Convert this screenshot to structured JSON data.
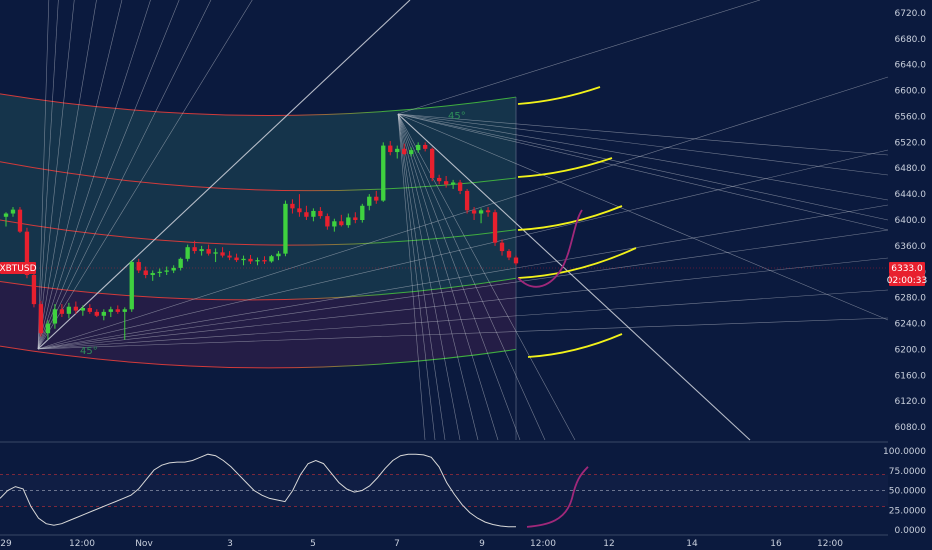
{
  "chart_data": {
    "type": "candlestick",
    "symbol_label": "XBTUSD",
    "price_panel": {
      "ylim": [
        6060,
        6740
      ],
      "y_ticks": [
        "6720.0",
        "6680.0",
        "6640.0",
        "6600.0",
        "6560.0",
        "6520.0",
        "6480.0",
        "6440.0",
        "6400.0",
        "6360.0",
        "6320.0",
        "6280.0",
        "6240.0",
        "6200.0",
        "6160.0",
        "6120.0",
        "6080.0"
      ],
      "last_price_label": "6333.0",
      "countdown_label": "02:00:33",
      "gann_angle_labels": [
        "45°",
        "45°"
      ]
    },
    "x_ticks": [
      "29",
      "12:00",
      "Nov",
      "3",
      "5",
      "7",
      "9",
      "12:00",
      "12",
      "14",
      "16",
      "12:00"
    ],
    "candles": [
      [
        6405,
        6412,
        6390,
        6410
      ],
      [
        6410,
        6420,
        6405,
        6416
      ],
      [
        6416,
        6420,
        6380,
        6382
      ],
      [
        6382,
        6388,
        6310,
        6315
      ],
      [
        6315,
        6320,
        6265,
        6270
      ],
      [
        6270,
        6275,
        6220,
        6225
      ],
      [
        6225,
        6245,
        6215,
        6240
      ],
      [
        6240,
        6270,
        6232,
        6262
      ],
      [
        6262,
        6270,
        6250,
        6255
      ],
      [
        6255,
        6272,
        6248,
        6266
      ],
      [
        6266,
        6274,
        6255,
        6260
      ],
      [
        6260,
        6268,
        6252,
        6264
      ],
      [
        6264,
        6270,
        6255,
        6258
      ],
      [
        6258,
        6262,
        6250,
        6252
      ],
      [
        6252,
        6262,
        6245,
        6258
      ],
      [
        6258,
        6266,
        6250,
        6262
      ],
      [
        6262,
        6268,
        6255,
        6258
      ],
      [
        6258,
        6265,
        6215,
        6262
      ],
      [
        6262,
        6338,
        6258,
        6335
      ],
      [
        6335,
        6340,
        6318,
        6322
      ],
      [
        6322,
        6328,
        6310,
        6315
      ],
      [
        6315,
        6322,
        6306,
        6318
      ],
      [
        6318,
        6325,
        6312,
        6320
      ],
      [
        6320,
        6328,
        6315,
        6322
      ],
      [
        6322,
        6330,
        6318,
        6326
      ],
      [
        6326,
        6342,
        6322,
        6340
      ],
      [
        6340,
        6362,
        6336,
        6358
      ],
      [
        6358,
        6368,
        6348,
        6352
      ],
      [
        6352,
        6360,
        6345,
        6355
      ],
      [
        6355,
        6362,
        6345,
        6348
      ],
      [
        6348,
        6356,
        6335,
        6350
      ],
      [
        6350,
        6358,
        6342,
        6345
      ],
      [
        6345,
        6352,
        6338,
        6342
      ],
      [
        6342,
        6348,
        6335,
        6338
      ],
      [
        6338,
        6345,
        6330,
        6340
      ],
      [
        6340,
        6346,
        6332,
        6336
      ],
      [
        6336,
        6342,
        6330,
        6338
      ],
      [
        6338,
        6344,
        6332,
        6336
      ],
      [
        6336,
        6346,
        6334,
        6344
      ],
      [
        6344,
        6352,
        6338,
        6348
      ],
      [
        6348,
        6430,
        6344,
        6425
      ],
      [
        6425,
        6432,
        6410,
        6418
      ],
      [
        6418,
        6440,
        6405,
        6412
      ],
      [
        6412,
        6422,
        6400,
        6405
      ],
      [
        6405,
        6418,
        6398,
        6414
      ],
      [
        6414,
        6420,
        6402,
        6406
      ],
      [
        6406,
        6410,
        6385,
        6390
      ],
      [
        6390,
        6402,
        6382,
        6398
      ],
      [
        6398,
        6408,
        6390,
        6392
      ],
      [
        6392,
        6410,
        6388,
        6404
      ],
      [
        6404,
        6412,
        6395,
        6400
      ],
      [
        6400,
        6425,
        6396,
        6422
      ],
      [
        6422,
        6440,
        6415,
        6436
      ],
      [
        6436,
        6445,
        6425,
        6430
      ],
      [
        6430,
        6520,
        6428,
        6515
      ],
      [
        6515,
        6522,
        6500,
        6505
      ],
      [
        6505,
        6515,
        6495,
        6510
      ],
      [
        6510,
        6518,
        6500,
        6502
      ],
      [
        6502,
        6512,
        6498,
        6508
      ],
      [
        6508,
        6520,
        6504,
        6516
      ],
      [
        6516,
        6520,
        6506,
        6510
      ],
      [
        6510,
        6512,
        6460,
        6465
      ],
      [
        6465,
        6470,
        6455,
        6460
      ],
      [
        6460,
        6468,
        6450,
        6455
      ],
      [
        6455,
        6462,
        6448,
        6458
      ],
      [
        6458,
        6462,
        6440,
        6445
      ],
      [
        6445,
        6448,
        6410,
        6415
      ],
      [
        6415,
        6420,
        6400,
        6410
      ],
      [
        6410,
        6418,
        6395,
        6415
      ],
      [
        6415,
        6420,
        6405,
        6412
      ],
      [
        6412,
        6416,
        6360,
        6365
      ],
      [
        6365,
        6370,
        6345,
        6352
      ],
      [
        6352,
        6355,
        6338,
        6342
      ],
      [
        6342,
        6345,
        6330,
        6333
      ]
    ],
    "oscillator_panel": {
      "ylim": [
        0,
        100
      ],
      "y_ticks": [
        "100.0000",
        "75.0000",
        "50.0000",
        "25.0000",
        "0.0000"
      ],
      "levels": [
        70,
        50,
        30
      ],
      "values": [
        40,
        50,
        55,
        52,
        30,
        15,
        8,
        6,
        8,
        12,
        16,
        20,
        24,
        28,
        32,
        36,
        40,
        44,
        52,
        64,
        76,
        82,
        85,
        86,
        86,
        88,
        92,
        96,
        94,
        88,
        80,
        70,
        60,
        50,
        44,
        40,
        38,
        36,
        50,
        70,
        84,
        88,
        84,
        72,
        60,
        52,
        48,
        50,
        56,
        66,
        78,
        88,
        94,
        96,
        96,
        95,
        92,
        80,
        60,
        45,
        32,
        22,
        15,
        10,
        7,
        5,
        4,
        4
      ]
    },
    "colors": {
      "background": "#0b1a3e",
      "up": "#3fd13f",
      "down": "#e8202e",
      "gann_lines": "#c8ccd6",
      "band_red": "#d23a3a",
      "band_green": "#3fae3f",
      "forecast_yellow": "#f2f21a",
      "forecast_magenta": "#a0287a",
      "oscillator_line": "#d8d8d8"
    }
  }
}
